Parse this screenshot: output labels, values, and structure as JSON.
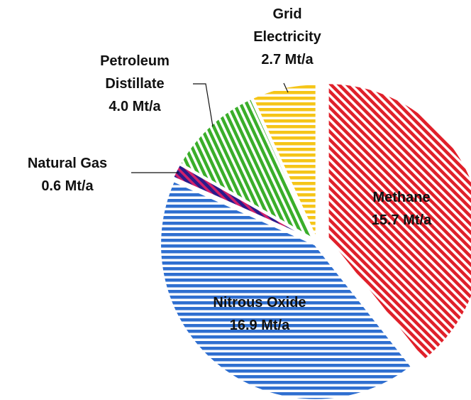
{
  "chart_data": {
    "type": "pie",
    "categories": [
      "Methane",
      "Nitrous Oxide",
      "Natural Gas",
      "Petroleum Distillate",
      "Grid Electricity"
    ],
    "values": [
      15.7,
      16.9,
      0.6,
      4.0,
      2.7
    ],
    "value_labels": [
      "15.7 Mt/a",
      "16.9 Mt/a",
      "0.6 Mt/a",
      "4.0 Mt/a",
      "2.7 Mt/a"
    ],
    "colors": [
      "#e0202a",
      "#2f6fd0",
      "#2a1a8c",
      "#3aae2a",
      "#f5c518"
    ]
  }
}
